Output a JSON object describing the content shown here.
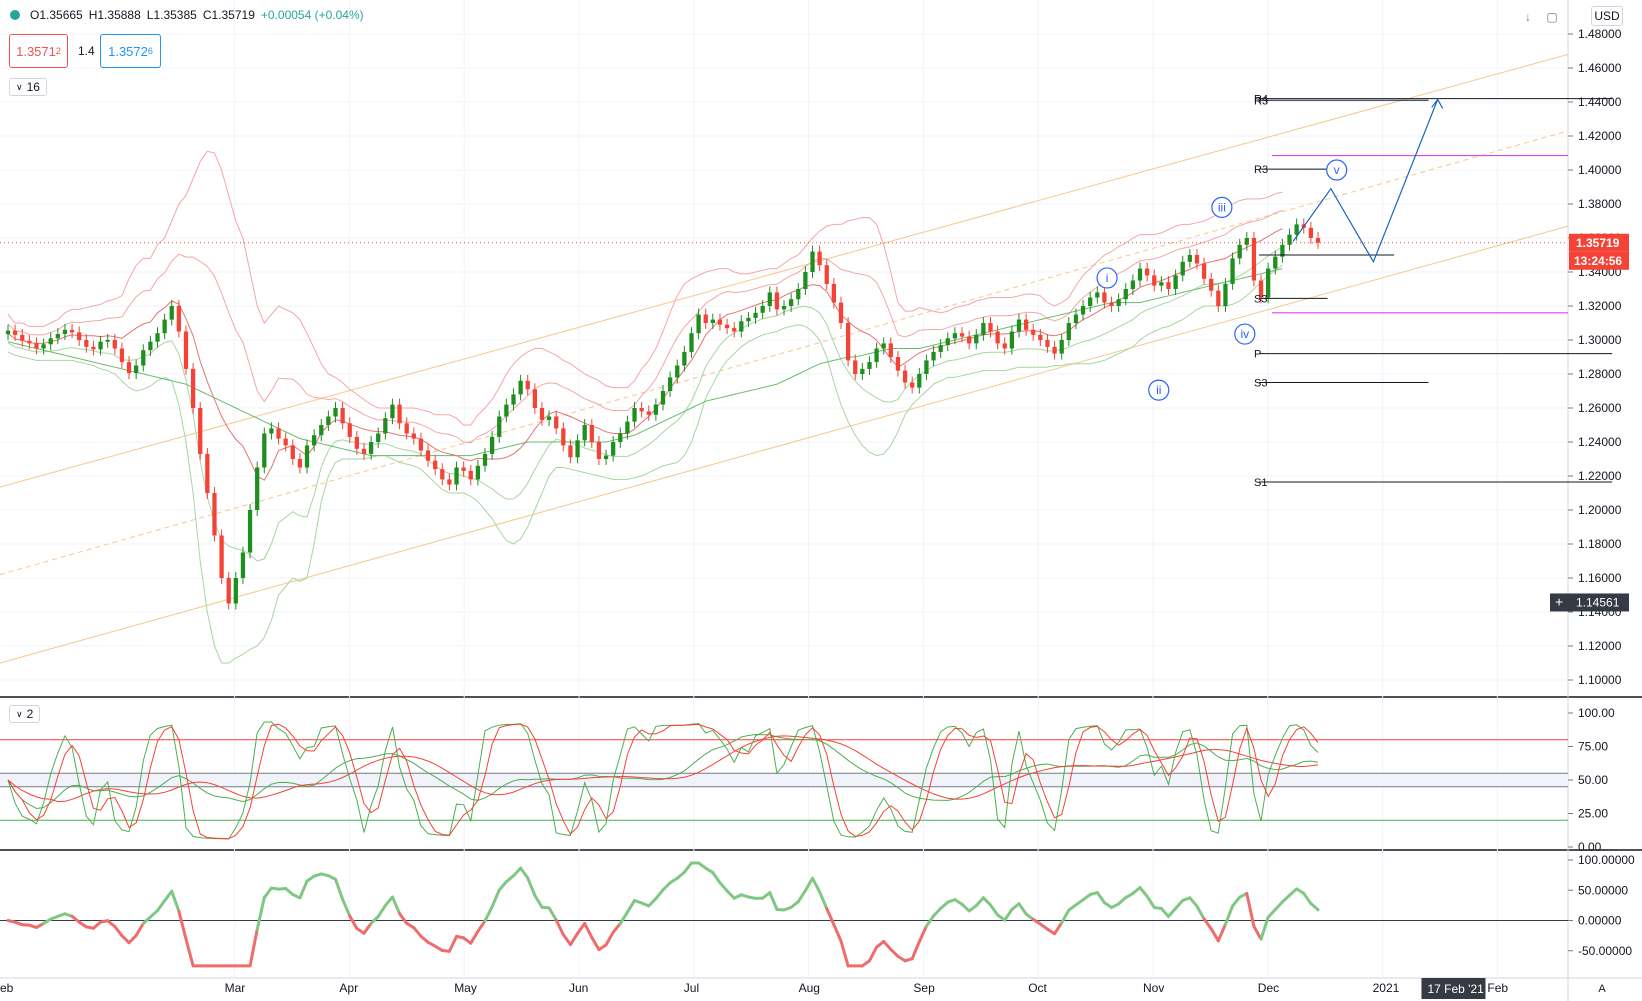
{
  "header": {
    "open": "O1.35665",
    "high": "H1.35888",
    "low": "L1.35385",
    "close": "C1.35719",
    "change": "+0.00054 (+0.04%)",
    "bid_main": "1.3571",
    "bid_sup": "2",
    "spread": "1.4",
    "ask_main": "1.3572",
    "ask_sup": "6"
  },
  "toggles": {
    "main_pane": "16",
    "stoch_pane": "2"
  },
  "currency": "USD",
  "scale_mode": "A",
  "colors": {
    "up": "#1e8e1e",
    "down": "#f44336",
    "bb": "#f4a6a6",
    "bb_inner": "#a8d5a2",
    "channel": "#f7c68c",
    "fib": "#f7c68c",
    "pivot": "#131722",
    "magenta": "#e040fb",
    "wave": "#2962ff",
    "stoch_k": "#4caf50",
    "stoch_d": "#f44336",
    "momentum_up": "#81c784",
    "momentum_down": "#ef6c6c"
  },
  "chart_data": [
    {
      "type": "candlestick",
      "y_ticks": [
        "1.48000",
        "1.46000",
        "1.44000",
        "1.42000",
        "1.40000",
        "1.38000",
        "1.36000",
        "1.34000",
        "1.32000",
        "1.30000",
        "1.28000",
        "1.26000",
        "1.24000",
        "1.22000",
        "1.20000",
        "1.18000",
        "1.16000",
        "1.14000",
        "1.12000",
        "1.10000"
      ],
      "ylim": [
        1.09,
        1.49
      ],
      "x_labels": [
        "eb",
        "Mar",
        "Apr",
        "May",
        "Jun",
        "Jul",
        "Aug",
        "Sep",
        "Oct",
        "Nov",
        "Dec",
        "2021",
        "Feb",
        "Mar"
      ],
      "x_label_pos": [
        0,
        2,
        3,
        4,
        5,
        6,
        7,
        8,
        9,
        10,
        11,
        12,
        13,
        14
      ],
      "current_price": "1.35719",
      "countdown": "13:24:56",
      "crosshair_price": "1.14561",
      "crosshair_date": "17 Feb '21",
      "close_series": [
        1.3055,
        1.303,
        1.2995,
        1.298,
        1.295,
        1.2975,
        1.301,
        1.3035,
        1.306,
        1.3045,
        1.3,
        1.296,
        1.2945,
        1.299,
        1.3,
        1.295,
        1.287,
        1.2805,
        1.285,
        1.294,
        1.299,
        1.304,
        1.312,
        1.32,
        1.305,
        1.283,
        1.26,
        1.233,
        1.21,
        1.185,
        1.16,
        1.145,
        1.16,
        1.175,
        1.2,
        1.225,
        1.245,
        1.248,
        1.242,
        1.238,
        1.23,
        1.225,
        1.238,
        1.244,
        1.25,
        1.255,
        1.26,
        1.251,
        1.243,
        1.236,
        1.233,
        1.24,
        1.245,
        1.254,
        1.262,
        1.251,
        1.245,
        1.242,
        1.235,
        1.229,
        1.224,
        1.218,
        1.215,
        1.225,
        1.223,
        1.218,
        1.226,
        1.233,
        1.243,
        1.255,
        1.262,
        1.268,
        1.276,
        1.271,
        1.26,
        1.253,
        1.255,
        1.248,
        1.238,
        1.231,
        1.241,
        1.25,
        1.24,
        1.23,
        1.232,
        1.24,
        1.245,
        1.252,
        1.26,
        1.258,
        1.256,
        1.262,
        1.27,
        1.278,
        1.285,
        1.293,
        1.304,
        1.315,
        1.31,
        1.312,
        1.309,
        1.307,
        1.305,
        1.311,
        1.313,
        1.316,
        1.32,
        1.328,
        1.318,
        1.32,
        1.324,
        1.33,
        1.34,
        1.352,
        1.344,
        1.333,
        1.322,
        1.31,
        1.288,
        1.28,
        1.283,
        1.287,
        1.295,
        1.298,
        1.29,
        1.282,
        1.275,
        1.272,
        1.28,
        1.288,
        1.293,
        1.297,
        1.301,
        1.304,
        1.302,
        1.298,
        1.303,
        1.31,
        1.305,
        1.298,
        1.295,
        1.305,
        1.312,
        1.306,
        1.303,
        1.3,
        1.296,
        1.292,
        1.3,
        1.31,
        1.315,
        1.32,
        1.325,
        1.328,
        1.322,
        1.32,
        1.324,
        1.33,
        1.335,
        1.342,
        1.338,
        1.332,
        1.334,
        1.33,
        1.338,
        1.346,
        1.35,
        1.345,
        1.336,
        1.329,
        1.32,
        1.333,
        1.348,
        1.356,
        1.36,
        1.335,
        1.325,
        1.342,
        1.349,
        1.356,
        1.362,
        1.368,
        1.366,
        1.36,
        1.3572
      ],
      "bb_upper": [
        1.315,
        1.31,
        1.31,
        1.308,
        1.308,
        1.308,
        1.31,
        1.312,
        1.316,
        1.318,
        1.318,
        1.319,
        1.32,
        1.321,
        1.323,
        1.324,
        1.326,
        1.336,
        1.344,
        1.348,
        1.348,
        1.356,
        1.36,
        1.37,
        1.38,
        1.385,
        1.395,
        1.405,
        1.411,
        1.41,
        1.4,
        1.385,
        1.37,
        1.36,
        1.34,
        1.32,
        1.31,
        1.315,
        1.32,
        1.318,
        1.316,
        1.312,
        1.304,
        1.295,
        1.286,
        1.28,
        1.278,
        1.275,
        1.271,
        1.268,
        1.265,
        1.262,
        1.26,
        1.26,
        1.26,
        1.26,
        1.26,
        1.26,
        1.259,
        1.258,
        1.256,
        1.256,
        1.256,
        1.254,
        1.25,
        1.25,
        1.256,
        1.26,
        1.265,
        1.272,
        1.28,
        1.286,
        1.29,
        1.293,
        1.295,
        1.295,
        1.293,
        1.291,
        1.288,
        1.286,
        1.283,
        1.28,
        1.278,
        1.276,
        1.273,
        1.272,
        1.272,
        1.272,
        1.276,
        1.283,
        1.288,
        1.295,
        1.305,
        1.316,
        1.326,
        1.333,
        1.336,
        1.338,
        1.34,
        1.341,
        1.342,
        1.342,
        1.34,
        1.339,
        1.339,
        1.34,
        1.341,
        1.342,
        1.342,
        1.345,
        1.348,
        1.35,
        1.355,
        1.36,
        1.364,
        1.367,
        1.368,
        1.368,
        1.37,
        1.371,
        1.372,
        1.372,
        1.368,
        1.356,
        1.34,
        1.322,
        1.317,
        1.317,
        1.319,
        1.318,
        1.317,
        1.316,
        1.317,
        1.319,
        1.32,
        1.321,
        1.323,
        1.324,
        1.325,
        1.325,
        1.325,
        1.325,
        1.326,
        1.327,
        1.327,
        1.326,
        1.322,
        1.32,
        1.322,
        1.325,
        1.332,
        1.338,
        1.342,
        1.346,
        1.35,
        1.352,
        1.355,
        1.357,
        1.36,
        1.362,
        1.362,
        1.362,
        1.363,
        1.365,
        1.367,
        1.368,
        1.368,
        1.369,
        1.37,
        1.372,
        1.374,
        1.376,
        1.38,
        1.382,
        1.383,
        1.383,
        1.383,
        1.384,
        1.386,
        1.387
      ],
      "bb_lower": [
        1.293,
        1.291,
        1.29,
        1.289,
        1.288,
        1.288,
        1.288,
        1.288,
        1.288,
        1.288,
        1.287,
        1.286,
        1.285,
        1.283,
        1.282,
        1.28,
        1.276,
        1.272,
        1.27,
        1.271,
        1.273,
        1.276,
        1.278,
        1.276,
        1.262,
        1.24,
        1.21,
        1.17,
        1.14,
        1.12,
        1.11,
        1.11,
        1.113,
        1.115,
        1.118,
        1.12,
        1.125,
        1.135,
        1.15,
        1.155,
        1.16,
        1.158,
        1.16,
        1.18,
        1.205,
        1.22,
        1.228,
        1.23,
        1.23,
        1.23,
        1.23,
        1.231,
        1.232,
        1.232,
        1.23,
        1.228,
        1.227,
        1.226,
        1.224,
        1.22,
        1.216,
        1.212,
        1.21,
        1.21,
        1.21,
        1.208,
        1.205,
        1.2,
        1.195,
        1.188,
        1.182,
        1.18,
        1.183,
        1.19,
        1.2,
        1.21,
        1.22,
        1.225,
        1.225,
        1.224,
        1.223,
        1.222,
        1.221,
        1.22,
        1.219,
        1.218,
        1.218,
        1.218,
        1.219,
        1.22,
        1.222,
        1.224,
        1.226,
        1.227,
        1.228,
        1.232,
        1.24,
        1.252,
        1.266,
        1.274,
        1.282,
        1.288,
        1.292,
        1.296,
        1.299,
        1.301,
        1.303,
        1.304,
        1.305,
        1.307,
        1.308,
        1.309,
        1.308,
        1.305,
        1.3,
        1.29,
        1.275,
        1.262,
        1.252,
        1.244,
        1.238,
        1.234,
        1.232,
        1.233,
        1.238,
        1.246,
        1.256,
        1.262,
        1.266,
        1.27,
        1.274,
        1.276,
        1.278,
        1.278,
        1.279,
        1.28,
        1.281,
        1.282,
        1.282,
        1.282,
        1.282,
        1.283,
        1.284,
        1.284,
        1.284,
        1.284,
        1.284,
        1.285,
        1.285,
        1.286,
        1.286,
        1.286,
        1.286,
        1.287,
        1.288,
        1.29,
        1.292,
        1.294,
        1.296,
        1.3,
        1.303,
        1.305,
        1.307,
        1.308,
        1.31,
        1.312,
        1.315,
        1.318,
        1.32,
        1.32,
        1.32,
        1.32,
        1.321,
        1.323,
        1.326,
        1.33,
        1.334,
        1.338,
        1.341,
        1.344
      ],
      "sma_long": [
        1.299,
        1.298,
        1.297,
        1.296,
        1.295,
        1.294,
        1.293,
        1.292,
        1.291,
        1.29,
        1.289,
        1.288,
        1.287,
        1.286,
        1.285,
        1.284,
        1.283,
        1.282,
        1.281,
        1.28,
        1.279,
        1.278,
        1.277,
        1.276,
        1.275,
        1.274,
        1.272,
        1.27,
        1.268,
        1.266,
        1.264,
        1.262,
        1.26,
        1.258,
        1.256,
        1.254,
        1.252,
        1.25,
        1.248,
        1.246,
        1.244,
        1.242,
        1.241,
        1.24,
        1.239,
        1.238,
        1.237,
        1.236,
        1.235,
        1.234,
        1.233,
        1.232,
        1.232,
        1.232,
        1.232,
        1.232,
        1.232,
        1.232,
        1.232,
        1.232,
        1.232,
        1.232,
        1.232,
        1.232,
        1.232,
        1.232,
        1.233,
        1.234,
        1.235,
        1.236,
        1.237,
        1.238,
        1.239,
        1.24,
        1.24,
        1.24,
        1.24,
        1.24,
        1.24,
        1.24,
        1.24,
        1.24,
        1.24,
        1.24,
        1.24,
        1.241,
        1.242,
        1.243,
        1.244,
        1.246,
        1.248,
        1.25,
        1.252,
        1.254,
        1.256,
        1.258,
        1.26,
        1.262,
        1.264,
        1.265,
        1.266,
        1.267,
        1.268,
        1.269,
        1.27,
        1.271,
        1.272,
        1.273,
        1.274,
        1.276,
        1.278,
        1.28,
        1.282,
        1.284,
        1.286,
        1.287,
        1.288,
        1.289,
        1.29,
        1.29,
        1.291,
        1.292,
        1.293,
        1.294,
        1.295,
        1.295,
        1.295,
        1.295,
        1.295,
        1.296,
        1.297,
        1.298,
        1.299,
        1.3,
        1.301,
        1.302,
        1.303,
        1.304,
        1.305,
        1.306,
        1.307,
        1.308,
        1.309,
        1.31,
        1.311,
        1.312,
        1.313,
        1.314,
        1.315,
        1.316,
        1.317,
        1.318,
        1.319,
        1.32,
        1.321,
        1.322,
        1.322,
        1.322,
        1.322,
        1.322,
        1.323,
        1.324,
        1.325,
        1.326,
        1.327,
        1.328,
        1.329,
        1.33,
        1.331,
        1.332,
        1.333,
        1.334,
        1.335,
        1.336,
        1.337,
        1.338,
        1.339,
        1.34,
        1.341,
        1.342
      ],
      "pivot_levels": [
        {
          "label": "R4",
          "price": 1.442,
          "x_end": 14.0
        },
        {
          "label": "R3",
          "price": 1.441,
          "x_end": 12.4
        },
        {
          "label": "R3",
          "price": 1.4005,
          "x_end": 11.52
        },
        {
          "label": "",
          "price": 1.35,
          "x_end": 12.1
        },
        {
          "label": "S3",
          "price": 1.3245,
          "x_end": 11.52
        },
        {
          "label": "P",
          "price": 1.292,
          "x_end": 14.0
        },
        {
          "label": "S3",
          "price": 1.275,
          "x_end": 12.4
        },
        {
          "label": "S1",
          "price": 1.2165,
          "x_end": 14.0
        }
      ],
      "magenta_levels": [
        1.4085,
        1.316
      ],
      "wave_labels": [
        {
          "label": "i",
          "x": 9.6,
          "price": 1.3365
        },
        {
          "label": "ii",
          "x": 10.05,
          "price": 1.2705
        },
        {
          "label": "iii",
          "x": 10.6,
          "price": 1.378
        },
        {
          "label": "iv",
          "x": 10.8,
          "price": 1.3035
        },
        {
          "label": "v",
          "x": 11.6,
          "price": 1.4
        }
      ],
      "projection": [
        [
          11.22,
          1.358
        ],
        [
          11.55,
          1.389
        ],
        [
          11.92,
          1.346
        ],
        [
          12.48,
          1.4415
        ]
      ]
    },
    {
      "type": "line",
      "name": "stochastic",
      "y_ticks": [
        "100.00",
        "75.00",
        "50.00",
        "25.00",
        "0.00"
      ],
      "ylim": [
        0,
        100
      ],
      "levels": [
        80,
        50,
        20
      ]
    },
    {
      "type": "line",
      "name": "momentum",
      "y_ticks": [
        "100.00000",
        "50.00000",
        "0.00000",
        "-50.00000"
      ],
      "ylim": [
        -80,
        110
      ],
      "zero_line": 0
    }
  ]
}
